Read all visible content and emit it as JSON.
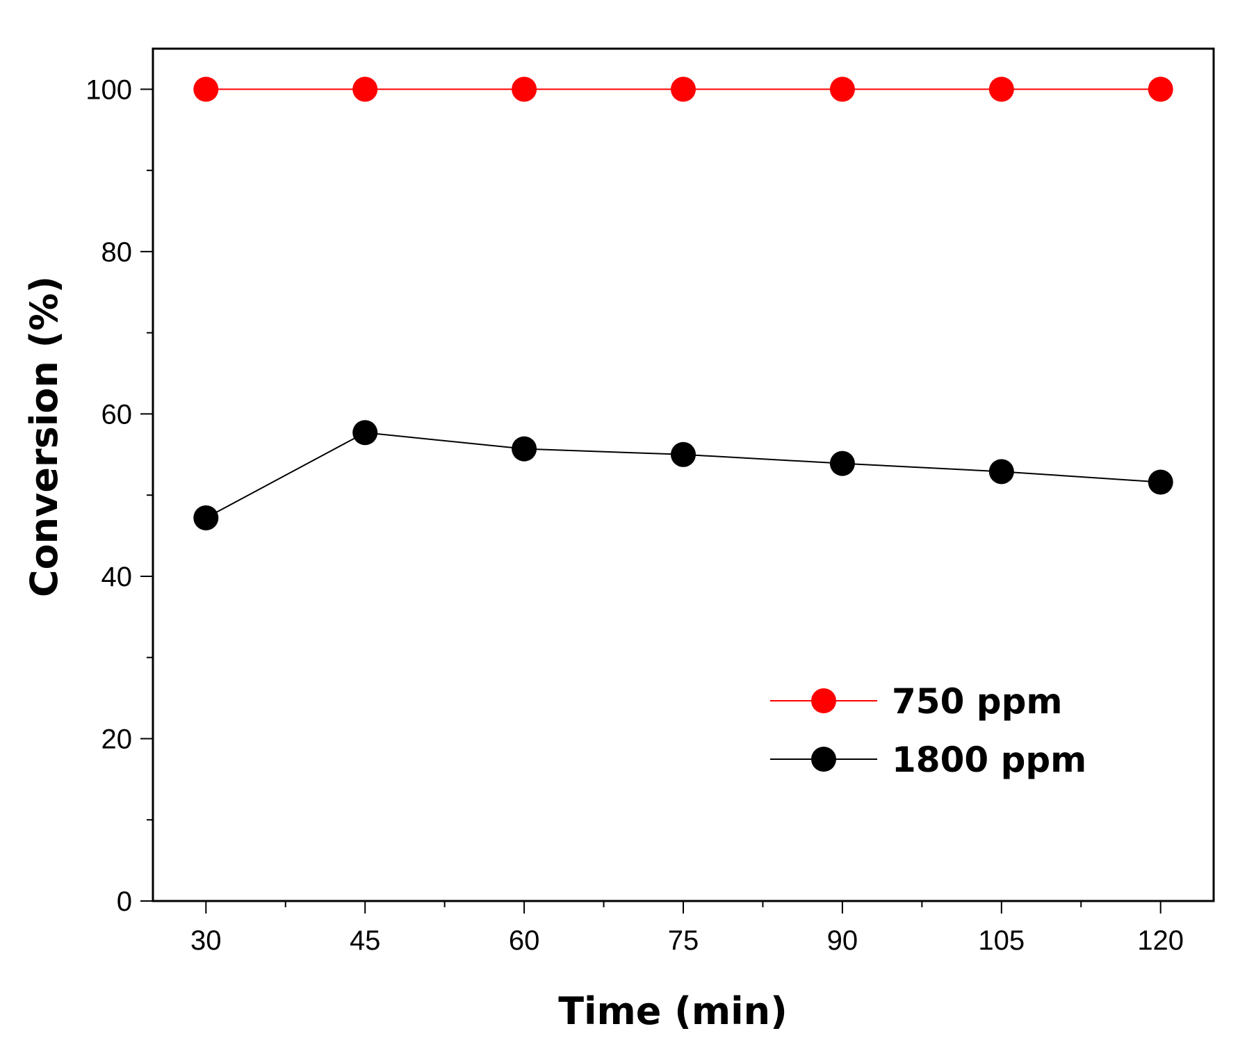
{
  "chart_data": {
    "type": "line",
    "title": "",
    "xlabel": "Time (min)",
    "ylabel": "Conversion (%)",
    "x": [
      30,
      45,
      60,
      75,
      90,
      105,
      120
    ],
    "xticks": [
      "30",
      "45",
      "60",
      "75",
      "90",
      "105",
      "120"
    ],
    "yticks": [
      "0",
      "20",
      "40",
      "60",
      "80",
      "100"
    ],
    "xlim": [
      25,
      125
    ],
    "ylim": [
      0,
      105
    ],
    "grid": false,
    "legend_position": "lower-right",
    "series": [
      {
        "name": "750 ppm",
        "color": "#ff0000",
        "values": [
          100,
          100,
          100,
          100,
          100,
          100,
          100
        ]
      },
      {
        "name": "1800 ppm",
        "color": "#000000",
        "values": [
          47.2,
          57.7,
          55.7,
          55.0,
          53.9,
          52.9,
          51.6
        ]
      }
    ]
  }
}
